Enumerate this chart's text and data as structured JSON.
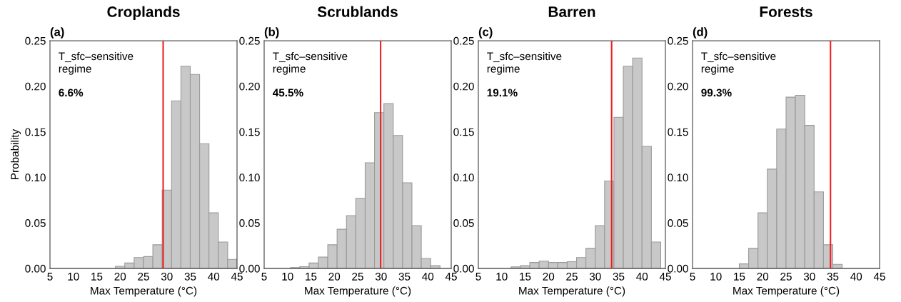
{
  "chart_data": [
    {
      "type": "histogram",
      "title": "Croplands",
      "xlabel": "Max Temperature (°C)",
      "ylabel": "Probability",
      "color": "#c8c8c8",
      "bins": [
        17,
        19,
        21,
        23,
        25,
        27,
        29,
        31,
        33,
        35,
        37,
        39,
        41,
        43,
        45
      ],
      "values": [
        null,
        0.0024,
        0.006,
        0.012,
        0.013,
        0.026,
        0.086,
        0.184,
        0.222,
        0.213,
        0.137,
        0.061,
        0.029,
        0.01
      ],
      "xlim": [
        5,
        45
      ],
      "xticks": [
        5,
        10,
        15,
        20,
        25,
        30,
        35,
        40,
        45
      ],
      "ylim": [
        0,
        0.25
      ],
      "yticks": [
        {
          "value": 0,
          "label": "0.00"
        },
        0.05,
        {
          "value": 0.1,
          "label": "0.10"
        },
        0.15,
        {
          "value": 0.2,
          "label": "0.20"
        },
        0.25
      ],
      "ref_lines": [
        {
          "axis": "x",
          "value": 29.2,
          "color": "#ee2020"
        }
      ],
      "annotations": [
        "(a)",
        "T_sfc–sensitive\nregime",
        "6.6%"
      ],
      "grid": false
    },
    {
      "type": "histogram",
      "title": "Scrublands",
      "xlabel": "Max Temperature (°C)",
      "color": "#c8c8c8",
      "bins": [
        8.6,
        10.6,
        12.6,
        14.6,
        16.6,
        18.6,
        20.6,
        22.6,
        24.6,
        26.6,
        28.6,
        30.6,
        32.6,
        34.6,
        36.6,
        38.6,
        40.6,
        42.6
      ],
      "values": [
        null,
        0.001,
        0.002,
        0.006,
        0.0124,
        0.026,
        0.043,
        0.058,
        0.077,
        0.116,
        0.171,
        0.181,
        0.146,
        0.094,
        0.047,
        0.011,
        0.003
      ],
      "xlim": [
        5,
        45
      ],
      "xticks": [
        5,
        10,
        15,
        20,
        25,
        30,
        35,
        40,
        45
      ],
      "ylim": [
        0,
        0.25
      ],
      "yticks": [
        {
          "value": 0,
          "label": "0.00"
        },
        0.05,
        {
          "value": 0.1,
          "label": "0.10"
        },
        0.15,
        {
          "value": 0.2,
          "label": "0.20"
        },
        0.25
      ],
      "ref_lines": [
        {
          "axis": "x",
          "value": 29.9,
          "color": "#ee2020"
        }
      ],
      "annotations": [
        "(b)",
        "T_sfc–sensitive\nregime",
        "45.5%"
      ],
      "grid": false
    },
    {
      "type": "histogram",
      "title": "Barren",
      "xlabel": "Max Temperature (°C)",
      "color": "#c8c8c8",
      "bins": [
        10,
        12,
        14,
        16,
        18,
        20,
        22,
        24,
        26,
        28,
        30,
        32,
        34,
        36,
        38,
        40,
        42,
        44
      ],
      "values": [
        null,
        0.0018,
        0.003,
        0.0066,
        0.008,
        0.0066,
        0.0066,
        0.0074,
        0.012,
        0.022,
        0.047,
        0.096,
        0.166,
        0.222,
        0.231,
        0.134,
        0.029
      ],
      "xlim": [
        5,
        45
      ],
      "xticks": [
        5,
        10,
        15,
        20,
        25,
        30,
        35,
        40,
        45
      ],
      "ylim": [
        0,
        0.25
      ],
      "yticks": [
        {
          "value": 0,
          "label": "0.00"
        },
        0.05,
        {
          "value": 0.1,
          "label": "0.10"
        },
        0.15,
        {
          "value": 0.2,
          "label": "0.20"
        },
        0.25
      ],
      "ref_lines": [
        {
          "axis": "x",
          "value": 33.5,
          "color": "#ee2020"
        }
      ],
      "annotations": [
        "(c)",
        "T_sfc–sensitive\nregime",
        "19.1%"
      ],
      "grid": false
    },
    {
      "type": "histogram",
      "title": "Forests",
      "xlabel": "Max Temperature (°C)",
      "color": "#c8c8c8",
      "bins": [
        13,
        15,
        17,
        19,
        21,
        23,
        25,
        27,
        29,
        31,
        33,
        35,
        37
      ],
      "values": [
        null,
        0.005,
        0.022,
        0.061,
        0.109,
        0.153,
        0.188,
        0.19,
        0.157,
        0.084,
        0.026,
        0.0045
      ],
      "xlim": [
        5,
        45
      ],
      "xticks": [
        5,
        10,
        15,
        20,
        25,
        30,
        35,
        40,
        45
      ],
      "ylim": [
        0,
        0.25
      ],
      "yticks": [
        {
          "value": 0,
          "label": "0.00"
        },
        0.05,
        {
          "value": 0.1,
          "label": "0.10"
        },
        0.15,
        {
          "value": 0.2,
          "label": "0.20"
        },
        0.25
      ],
      "ref_lines": [
        {
          "axis": "x",
          "value": 34.5,
          "color": "#ee2020"
        }
      ],
      "annotations": [
        "(d)",
        "T_sfc–sensitive\nregime",
        "99.3%"
      ],
      "grid": false
    }
  ]
}
